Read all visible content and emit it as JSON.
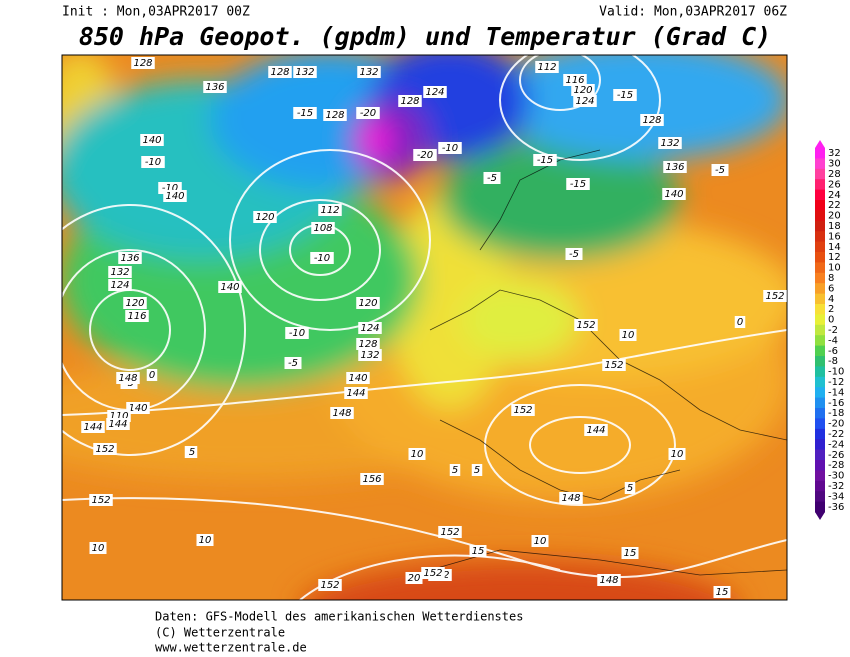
{
  "header": {
    "init": "Init : Mon,03APR2017 00Z",
    "valid": "Valid: Mon,03APR2017 06Z",
    "title": "850 hPa Geopot. (gpdm) und Temperatur (Grad C)"
  },
  "colorbar": {
    "labels": [
      32,
      30,
      28,
      26,
      24,
      22,
      20,
      18,
      16,
      14,
      12,
      10,
      8,
      6,
      4,
      2,
      0,
      -2,
      -4,
      -6,
      -8,
      -10,
      -12,
      -14,
      -16,
      -18,
      -20,
      -22,
      -24,
      -26,
      -28,
      -30,
      -32,
      -34,
      -36
    ],
    "colors": [
      "#ff20f0",
      "#ff40d0",
      "#ff40a0",
      "#ff2070",
      "#ff0040",
      "#f00018",
      "#e01010",
      "#d02010",
      "#d83010",
      "#e04010",
      "#e85010",
      "#f06818",
      "#f88020",
      "#f8a028",
      "#f8c030",
      "#f8e038",
      "#e8f038",
      "#c0e840",
      "#90e040",
      "#50d050",
      "#30c070",
      "#20c0a0",
      "#20c0d0",
      "#20b0f0",
      "#2090f0",
      "#2070f0",
      "#2050f0",
      "#2030e0",
      "#3020d0",
      "#5020c0",
      "#6010b0",
      "#7010a0",
      "#600890",
      "#500880",
      "#400070"
    ]
  },
  "map": {
    "labels": [
      "128",
      "136",
      "140",
      "-10",
      "-10",
      "140",
      "128",
      "132",
      "132",
      "-15",
      "-20",
      "128",
      "124",
      "128",
      "-20",
      "112",
      "116",
      "120",
      "124",
      "-15",
      "128",
      "132",
      "136",
      "140",
      "-5",
      "-10",
      "-15",
      "-15",
      "120",
      "112",
      "108",
      "-10",
      "136",
      "132",
      "124",
      "120",
      "116",
      "140",
      "-10",
      "-5",
      "120",
      "124",
      "128",
      "132",
      "140",
      "144",
      "148",
      "152",
      "144",
      "152",
      "10",
      "5",
      "0",
      "-5",
      "152",
      "10",
      "152",
      "152",
      "144",
      "148",
      "5",
      "10",
      "5",
      "156",
      "152",
      "10",
      "10",
      "152",
      "15",
      "152",
      "20",
      "152",
      "15",
      "148",
      "140",
      "110",
      "144",
      "148",
      "5",
      "5",
      "10",
      "15",
      "-5",
      "-5",
      "0",
      "152"
    ]
  },
  "footer": {
    "lines": [
      "Daten: GFS-Modell des amerikanischen Wetterdienstes",
      "(C) Wetterzentrale",
      "www.wetterzentrale.de"
    ]
  }
}
